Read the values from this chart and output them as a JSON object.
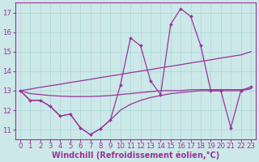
{
  "background_color": "#cce8e8",
  "grid_color": "#aad4d4",
  "line_color": "#993399",
  "xlabel": "Windchill (Refroidissement éolien,°C)",
  "xlabel_fontsize": 7.0,
  "tick_fontsize": 6.2,
  "ylim": [
    10.5,
    17.5
  ],
  "xlim": [
    -0.5,
    23.5
  ],
  "yticks": [
    11,
    12,
    13,
    14,
    15,
    16,
    17
  ],
  "xticks": [
    0,
    1,
    2,
    3,
    4,
    5,
    6,
    7,
    8,
    9,
    10,
    11,
    12,
    13,
    14,
    15,
    16,
    17,
    18,
    19,
    20,
    21,
    22,
    23
  ],
  "series_main": [
    13.0,
    12.5,
    12.5,
    12.2,
    11.7,
    11.8,
    11.1,
    10.75,
    11.05,
    11.5,
    13.3,
    15.7,
    15.3,
    13.5,
    12.8,
    16.4,
    17.2,
    16.8,
    15.3,
    13.0,
    13.0,
    11.1,
    13.0,
    13.2
  ],
  "series_linear": [
    13.0,
    13.08,
    13.17,
    13.25,
    13.33,
    13.42,
    13.5,
    13.58,
    13.67,
    13.75,
    13.83,
    13.92,
    14.0,
    14.08,
    14.17,
    14.25,
    14.33,
    14.42,
    14.5,
    14.58,
    14.67,
    14.75,
    14.83,
    15.0
  ],
  "series_flat": [
    13.0,
    12.85,
    12.8,
    12.75,
    12.72,
    12.7,
    12.7,
    12.7,
    12.72,
    12.75,
    12.8,
    12.85,
    12.9,
    12.95,
    13.0,
    13.0,
    13.0,
    13.05,
    13.05,
    13.05,
    13.05,
    13.05,
    13.05,
    13.1
  ],
  "series_low": [
    13.0,
    12.5,
    12.5,
    12.2,
    11.7,
    11.8,
    11.1,
    10.75,
    11.05,
    11.5,
    12.0,
    12.3,
    12.5,
    12.65,
    12.75,
    12.85,
    12.9,
    12.95,
    13.0,
    13.0,
    13.0,
    13.0,
    13.0,
    13.1
  ]
}
